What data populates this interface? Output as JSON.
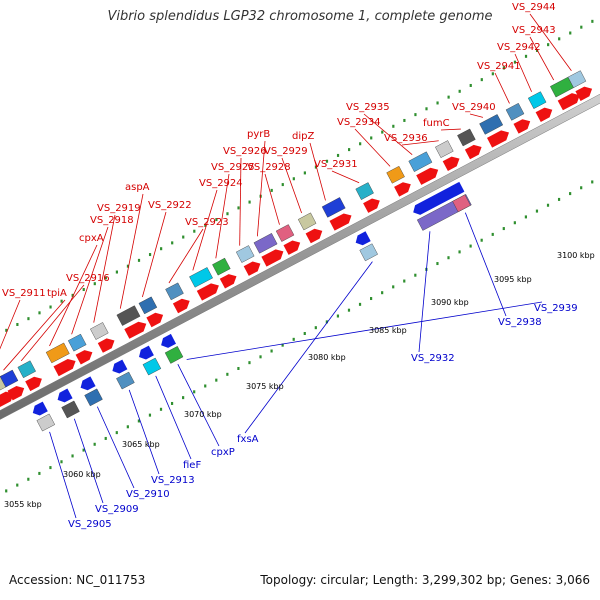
{
  "title": "Vibrio splendidus LGP32 chromosome 1, complete genome",
  "footer": {
    "accession": "Accession: NC_011753",
    "stats": "Topology: circular; Length: 3,299,302 bp; Genes: 3,066"
  },
  "colors": {
    "forward_label": "#d40000",
    "reverse_label": "#0000cc",
    "backbone": "#888888",
    "tick": "#2f8f2f",
    "forward_arrow": "#ee1111",
    "reverse_arrow": "#1122dd"
  },
  "axis_labels": [
    {
      "text": "3055 kbp"
    },
    {
      "text": "3060 kbp"
    },
    {
      "text": "3065 kbp"
    },
    {
      "text": "3070 kbp"
    },
    {
      "text": "3075 kbp"
    },
    {
      "text": "3080 kbp"
    },
    {
      "text": "3085 kbp"
    },
    {
      "text": "3090 kbp"
    },
    {
      "text": "3095 kbp"
    },
    {
      "text": "3100 kbp"
    }
  ],
  "forward_genes": [
    {
      "name": "VS_2911"
    },
    {
      "name": "tpiA"
    },
    {
      "name": "VS_2916"
    },
    {
      "name": "cpxA"
    },
    {
      "name": "VS_2918"
    },
    {
      "name": "VS_2919"
    },
    {
      "name": "aspA"
    },
    {
      "name": "VS_2922"
    },
    {
      "name": "VS_2923"
    },
    {
      "name": "VS_2924"
    },
    {
      "name": "VS_2925"
    },
    {
      "name": "VS_2926"
    },
    {
      "name": "pyrB"
    },
    {
      "name": "VS_2928"
    },
    {
      "name": "VS_2929"
    },
    {
      "name": "dipZ"
    },
    {
      "name": "VS_2931"
    },
    {
      "name": "VS_2934"
    },
    {
      "name": "VS_2935"
    },
    {
      "name": "VS_2936"
    },
    {
      "name": "fumC"
    },
    {
      "name": "VS_2940"
    },
    {
      "name": "VS_2941"
    },
    {
      "name": "VS_2942"
    },
    {
      "name": "VS_2943"
    },
    {
      "name": "VS_2944"
    }
  ],
  "reverse_genes": [
    {
      "name": "VS_2905"
    },
    {
      "name": "VS_2909"
    },
    {
      "name": "VS_2910"
    },
    {
      "name": "VS_2913"
    },
    {
      "name": "fieF"
    },
    {
      "name": "cpxP"
    },
    {
      "name": "fxsA"
    },
    {
      "name": "VS_2932"
    },
    {
      "name": "VS_2938"
    },
    {
      "name": "VS_2939"
    }
  ]
}
